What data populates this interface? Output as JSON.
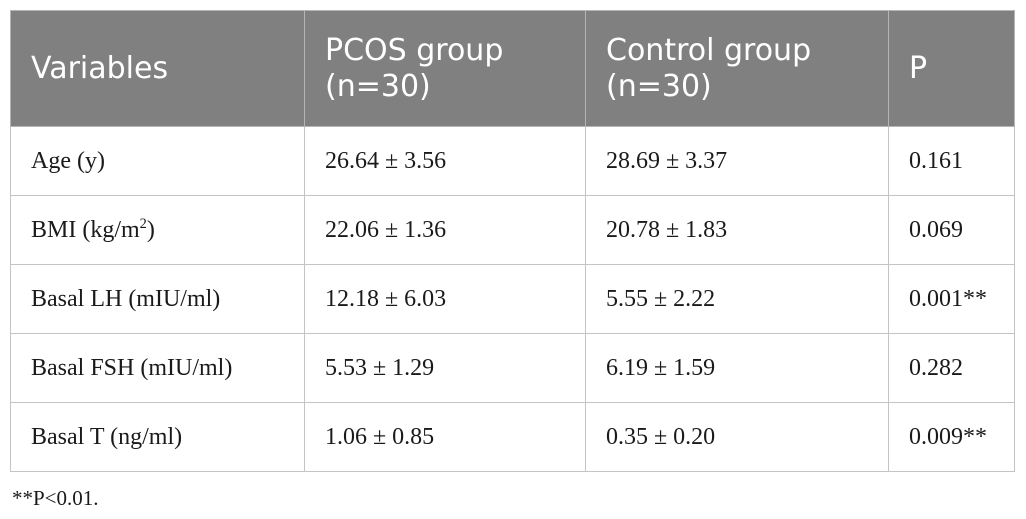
{
  "table": {
    "headers": [
      "Variables",
      "PCOS group (n=30)",
      "Control group (n=30)",
      "P"
    ],
    "rows": [
      {
        "variable": "Age (y)",
        "variable_sup": "",
        "variable_suffix": "",
        "pcos": "26.64 ± 3.56",
        "control": "28.69 ± 3.37",
        "p": "0.161"
      },
      {
        "variable": "BMI (kg/m",
        "variable_sup": "2",
        "variable_suffix": ")",
        "pcos": "22.06 ± 1.36",
        "control": "20.78 ± 1.83",
        "p": "0.069"
      },
      {
        "variable": "Basal LH (mIU/ml)",
        "variable_sup": "",
        "variable_suffix": "",
        "pcos": "12.18 ± 6.03",
        "control": "5.55 ± 2.22",
        "p": "0.001**"
      },
      {
        "variable": "Basal FSH (mIU/ml)",
        "variable_sup": "",
        "variable_suffix": "",
        "pcos": "5.53 ± 1.29",
        "control": "6.19 ± 1.59",
        "p": "0.282"
      },
      {
        "variable": "Basal T (ng/ml)",
        "variable_sup": "",
        "variable_suffix": "",
        "pcos": "1.06 ± 0.85",
        "control": "0.35 ± 0.20",
        "p": "0.009**"
      }
    ]
  },
  "footnote": "**P<0.01.",
  "colors": {
    "header_background": "#808080",
    "header_text": "#ffffff",
    "border": "#c4c4c4"
  }
}
